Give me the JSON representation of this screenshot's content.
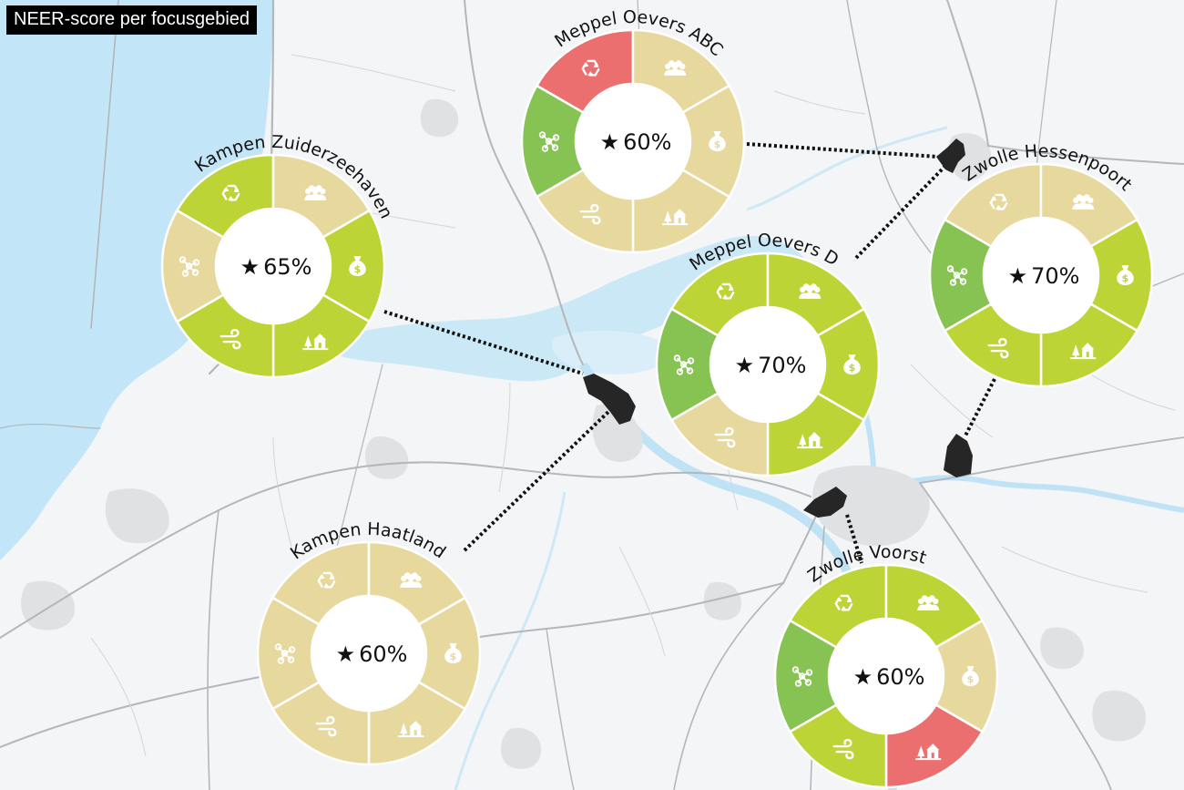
{
  "title": "NEER-score per focusgebied",
  "colors": {
    "score_low": "#eb6f6f",
    "score_mid": "#e7d89e",
    "score_good": "#bcd435",
    "score_high": "#86c353",
    "water": "#bfe3f5",
    "sea": "#c2e5f7",
    "land": "#f4f5f6",
    "urban": "#dfe1e3",
    "road": "#b3b6ba",
    "site": "#262626"
  },
  "segment_order": [
    "recycle-icon",
    "people-icon",
    "money-bag-icon",
    "nature-house-icon",
    "wind-icon",
    "network-icon"
  ],
  "areas": [
    {
      "id": "meppel-oevers-abc",
      "name": "Meppel Oevers ABC",
      "score": "60%",
      "segments": [
        "score_low",
        "score_mid",
        "score_mid",
        "score_mid",
        "score_mid",
        "score_high"
      ]
    },
    {
      "id": "kampen-zuiderzeehaven",
      "name": "Kampen Zuiderzeehaven",
      "score": "65%",
      "segments": [
        "score_good",
        "score_mid",
        "score_good",
        "score_good",
        "score_good",
        "score_mid"
      ]
    },
    {
      "id": "meppel-oevers-d",
      "name": "Meppel Oevers D",
      "score": "70%",
      "segments": [
        "score_good",
        "score_good",
        "score_good",
        "score_good",
        "score_mid",
        "score_high"
      ]
    },
    {
      "id": "zwolle-hessenpoort",
      "name": "Zwolle Hessenpoort",
      "score": "70%",
      "segments": [
        "score_mid",
        "score_mid",
        "score_good",
        "score_good",
        "score_good",
        "score_high"
      ]
    },
    {
      "id": "kampen-haatland",
      "name": "Kampen Haatland",
      "score": "60%",
      "segments": [
        "score_mid",
        "score_mid",
        "score_mid",
        "score_mid",
        "score_mid",
        "score_mid"
      ]
    },
    {
      "id": "zwolle-voorst",
      "name": "Zwolle Voorst",
      "score": "60%",
      "segments": [
        "score_good",
        "score_good",
        "score_mid",
        "score_low",
        "score_good",
        "score_high"
      ]
    }
  ]
}
